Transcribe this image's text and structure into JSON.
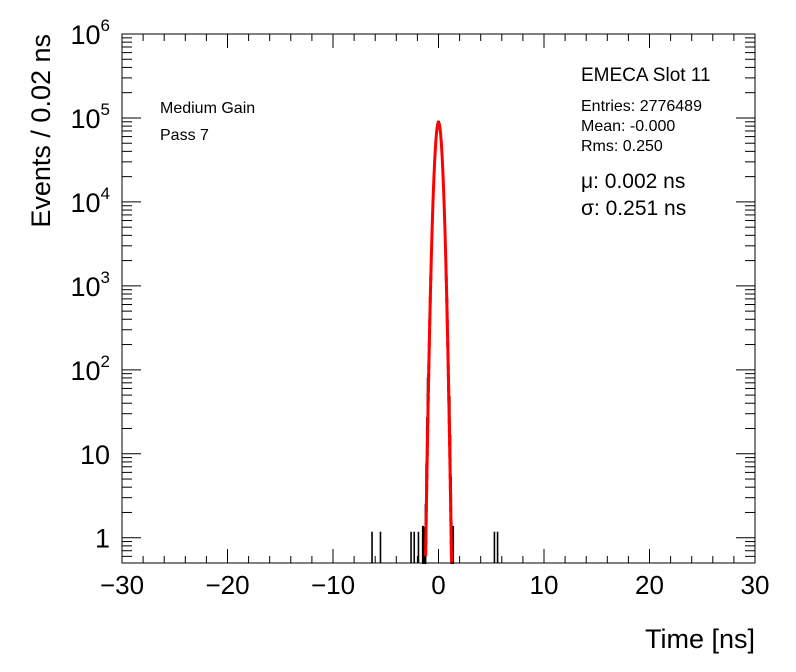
{
  "chart_data": {
    "type": "histogram",
    "title": "EMECA Slot 11",
    "xlabel": "Time [ns]",
    "ylabel": "Events / 0.02 ns",
    "xlim": [
      -30,
      30
    ],
    "ylim": [
      0.5,
      1000000
    ],
    "y_scale": "log",
    "bin_width": 0.02,
    "x_ticks": [
      "−30",
      "−20",
      "−10",
      "0",
      "10",
      "20",
      "30"
    ],
    "y_ticks": [
      {
        "value": 1,
        "base": "1",
        "exp": ""
      },
      {
        "value": 10,
        "base": "10",
        "exp": ""
      },
      {
        "value": 100,
        "base": "10",
        "exp": "2"
      },
      {
        "value": 1000,
        "base": "10",
        "exp": "3"
      },
      {
        "value": 10000,
        "base": "10",
        "exp": "4"
      },
      {
        "value": 100000,
        "base": "10",
        "exp": "5"
      },
      {
        "value": 1000000,
        "base": "10",
        "exp": "6"
      }
    ],
    "annotations": {
      "gain": "Medium Gain",
      "pass": "Pass 7"
    },
    "stats": {
      "entries": "Entries: 2776489",
      "mean": "Mean: -0.000",
      "rms": "Rms: 0.250"
    },
    "fit": {
      "mu_line": "μ: 0.002 ns",
      "sigma_line": "σ: 0.251 ns",
      "mu": 0.002,
      "sigma": 0.251,
      "peak": 88000,
      "range": [
        -1.3,
        1.3
      ]
    },
    "histogram": {
      "color": "#000000",
      "core_range": [
        -1.5,
        1.4
      ],
      "outliers": [
        {
          "x": -6.3,
          "y": 1
        },
        {
          "x": -5.5,
          "y": 1
        },
        {
          "x": -2.6,
          "y": 1
        },
        {
          "x": -2.3,
          "y": 1
        },
        {
          "x": -1.9,
          "y": 1
        },
        {
          "x": 5.3,
          "y": 1
        },
        {
          "x": 5.6,
          "y": 1
        }
      ]
    },
    "fit_color": "#ff0000",
    "grid": false
  }
}
